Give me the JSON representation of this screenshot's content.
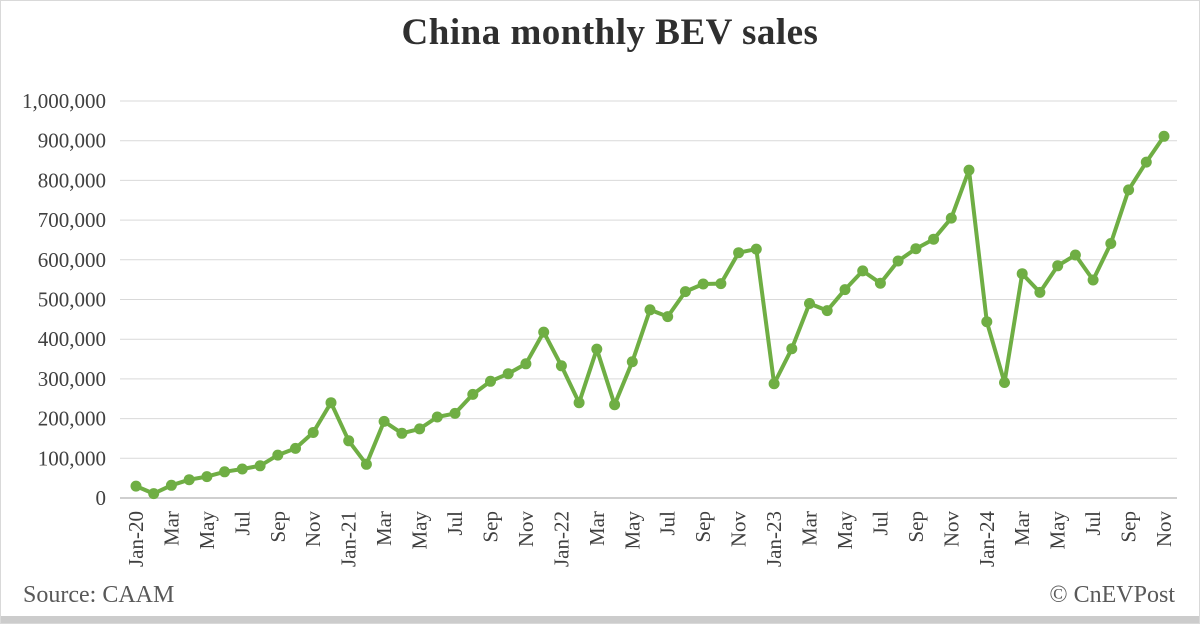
{
  "title": "China monthly BEV sales",
  "footer": {
    "source": "Source: CAAM",
    "copyright": "© CnEVPost"
  },
  "chart_data": {
    "type": "line",
    "title": "China monthly BEV sales",
    "xlabel": "",
    "ylabel": "",
    "ylim": [
      0,
      1000000
    ],
    "y_tick_step": 100000,
    "grid": true,
    "legend": "none",
    "line_color": "#6fae44",
    "marker": "circle",
    "gridline_color": "#d9d9d9",
    "axis_line_color": "#bfbfbf",
    "tick_label_color": "#404040",
    "y_tick_labels": [
      "1,000,000",
      "900,000",
      "800,000",
      "700,000",
      "600,000",
      "500,000",
      "400,000",
      "300,000",
      "200,000",
      "100,000",
      "0"
    ],
    "x_tick_labels": [
      "Jan-20",
      "Mar",
      "May",
      "Jul",
      "Sep",
      "Nov",
      "Jan-21",
      "Mar",
      "May",
      "Jul",
      "Sep",
      "Nov",
      "Jan-22",
      "Mar",
      "May",
      "Jul",
      "Sep",
      "Nov",
      "Jan-23",
      "Mar",
      "May",
      "Jul",
      "Sep",
      "Nov",
      "Jan-24",
      "Mar",
      "May",
      "Jul",
      "Sep",
      "Nov"
    ],
    "x": [
      "Jan-20",
      "Feb-20",
      "Mar-20",
      "Apr-20",
      "May-20",
      "Jun-20",
      "Jul-20",
      "Aug-20",
      "Sep-20",
      "Oct-20",
      "Nov-20",
      "Dec-20",
      "Jan-21",
      "Feb-21",
      "Mar-21",
      "Apr-21",
      "May-21",
      "Jun-21",
      "Jul-21",
      "Aug-21",
      "Sep-21",
      "Oct-21",
      "Nov-21",
      "Dec-21",
      "Jan-22",
      "Feb-22",
      "Mar-22",
      "Apr-22",
      "May-22",
      "Jun-22",
      "Jul-22",
      "Aug-22",
      "Sep-22",
      "Oct-22",
      "Nov-22",
      "Dec-22",
      "Jan-23",
      "Feb-23",
      "Mar-23",
      "Apr-23",
      "May-23",
      "Jun-23",
      "Jul-23",
      "Aug-23",
      "Sep-23",
      "Oct-23",
      "Nov-23",
      "Dec-23",
      "Jan-24",
      "Feb-24",
      "Mar-24",
      "Apr-24",
      "May-24",
      "Jun-24",
      "Jul-24",
      "Aug-24",
      "Sep-24",
      "Oct-24",
      "Nov-24"
    ],
    "values": [
      30000,
      11000,
      32000,
      46000,
      54000,
      66000,
      73000,
      81000,
      108000,
      125000,
      165000,
      240000,
      144000,
      85000,
      193000,
      163000,
      174000,
      204000,
      213000,
      261000,
      294000,
      313000,
      338000,
      418000,
      333000,
      240000,
      375000,
      235000,
      343000,
      474000,
      457000,
      520000,
      539000,
      540000,
      618000,
      627000,
      288000,
      376000,
      490000,
      472000,
      525000,
      572000,
      541000,
      597000,
      628000,
      652000,
      705000,
      826000,
      444000,
      291000,
      565000,
      518000,
      585000,
      612000,
      549000,
      641000,
      776000,
      846000,
      911000
    ]
  }
}
